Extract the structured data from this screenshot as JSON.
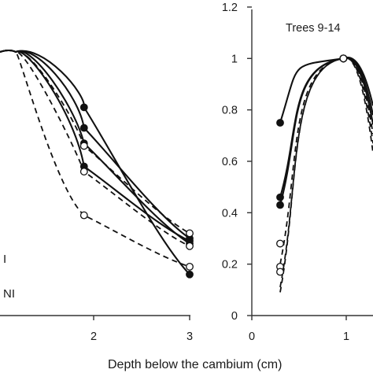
{
  "chart_data": [
    {
      "type": "line",
      "title": "",
      "xlabel": "Depth below the cambium (cm)",
      "ylabel": "",
      "xlim": [
        0.95,
        3
      ],
      "ylim": [
        0,
        1.2
      ],
      "xticks": [
        "2",
        "3"
      ],
      "yticks": [],
      "grid": false,
      "legend": [
        "I",
        "NI"
      ],
      "series": [
        {
          "style": "solid",
          "marker": "filled",
          "x": [
            1.9,
            3.0
          ],
          "y": [
            0.81,
            0.16
          ]
        },
        {
          "style": "solid",
          "marker": "filled",
          "x": [
            1.9,
            3.0
          ],
          "y": [
            0.73,
            0.3
          ]
        },
        {
          "style": "solid",
          "marker": "filled",
          "x": [
            1.9,
            3.0
          ],
          "y": [
            0.67,
            0.28
          ]
        },
        {
          "style": "solid",
          "marker": "filled",
          "x": [
            1.9,
            3.0
          ],
          "y": [
            0.58,
            0.29
          ]
        },
        {
          "style": "dashed",
          "marker": "open",
          "x": [
            1.9,
            3.0
          ],
          "y": [
            0.66,
            0.32
          ]
        },
        {
          "style": "dashed",
          "marker": "open",
          "x": [
            1.9,
            3.0
          ],
          "y": [
            0.56,
            0.27
          ]
        },
        {
          "style": "dashed",
          "marker": "open",
          "x": [
            1.9,
            3.0
          ],
          "y": [
            0.39,
            0.19
          ]
        }
      ]
    },
    {
      "type": "line",
      "title": "Trees 9-14",
      "xlabel": "Depth below the cambium (cm)",
      "ylabel": "",
      "xlim": [
        0,
        1.1
      ],
      "ylim": [
        0,
        1.2
      ],
      "xticks": [
        "0",
        "1"
      ],
      "yticks": [
        "0",
        "0.2",
        "0.4",
        "0.6",
        "0.8",
        "1",
        "1.2"
      ],
      "grid": false,
      "series": [
        {
          "style": "solid",
          "marker": "filled",
          "x": [
            0.3,
            0.97
          ],
          "y": [
            0.75,
            1.0
          ]
        },
        {
          "style": "solid",
          "marker": "filled",
          "x": [
            0.3,
            0.97
          ],
          "y": [
            0.46,
            1.0
          ]
        },
        {
          "style": "solid",
          "marker": "filled",
          "x": [
            0.3,
            0.97
          ],
          "y": [
            0.43,
            1.0
          ]
        },
        {
          "style": "dashed",
          "marker": "open",
          "x": [
            0.3,
            0.97
          ],
          "y": [
            0.28,
            1.0
          ]
        },
        {
          "style": "dashed",
          "marker": "open",
          "x": [
            0.3,
            0.97
          ],
          "y": [
            0.19,
            1.0
          ]
        },
        {
          "style": "dashed",
          "marker": "open",
          "x": [
            0.3,
            0.97
          ],
          "y": [
            0.17,
            1.0
          ]
        }
      ]
    }
  ]
}
